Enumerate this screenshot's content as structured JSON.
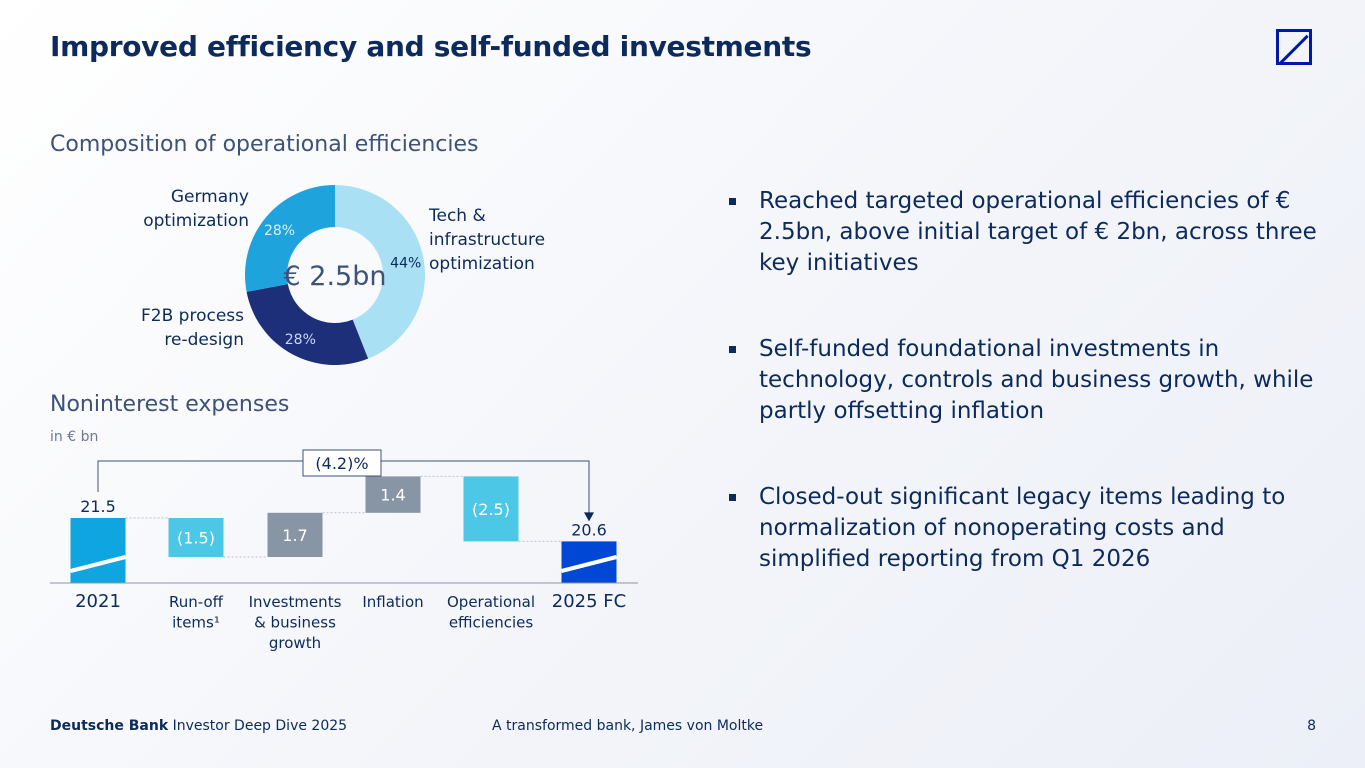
{
  "title": "Improved efficiency and self-funded investments",
  "logo": "deutsche-bank-logo",
  "donut": {
    "section_title": "Composition of operational efficiencies",
    "center_label": "€ 2.5bn",
    "colors": {
      "tech": "#a9e0f3",
      "f2b": "#1e2f7a",
      "germany": "#1fa3dd"
    }
  },
  "waterfall": {
    "section_title": "Noninterest expenses",
    "unit": "in € bn",
    "bracket_label": "(4.2)%",
    "colors": {
      "total": "#0ea5e0",
      "total2": "#0047d6",
      "negative": "#4cc7e6",
      "positive": "#8795a5"
    }
  },
  "chart_data": [
    {
      "type": "pie",
      "title": "Composition of operational efficiencies",
      "center_label": "€ 2.5bn",
      "categories": [
        "Tech & infrastructure optimization",
        "F2B process re-design",
        "Germany optimization"
      ],
      "label_lines": [
        [
          "Tech &",
          "infrastructure",
          "optimization"
        ],
        [
          "F2B process",
          "re-design"
        ],
        [
          "Germany",
          "optimization"
        ]
      ],
      "values": [
        44,
        28,
        28
      ],
      "value_labels": [
        "44%",
        "28%",
        "28%"
      ]
    },
    {
      "type": "bar",
      "subtype": "waterfall",
      "title": "Noninterest expenses",
      "ylabel": "in € bn",
      "categories": [
        "2021",
        "Run-off items1",
        "Investments & business growth",
        "Inflation",
        "Operational efficiencies",
        "2025 FC"
      ],
      "category_lines": [
        [
          "2021"
        ],
        [
          "Run-off",
          "items¹"
        ],
        [
          "Investments",
          "& business",
          "growth"
        ],
        [
          "Inflation"
        ],
        [
          "Operational",
          "efficiencies"
        ],
        [
          "2025 FC"
        ]
      ],
      "values": [
        21.5,
        -1.5,
        1.7,
        1.4,
        -2.5,
        20.6
      ],
      "value_labels": [
        "21.5",
        "(1.5)",
        "1.7",
        "1.4",
        "(2.5)",
        "20.6"
      ],
      "kinds": [
        "total",
        "negative",
        "positive",
        "positive",
        "negative",
        "total"
      ],
      "change_label": "(4.2)%"
    }
  ],
  "bullets": [
    "Reached targeted operational efficiencies of € 2.5bn, above initial target of € 2bn, across three key initiatives",
    "Self-funded foundational investments in technology, controls and business growth, while partly offsetting inflation",
    "Closed-out significant legacy items leading to normalization of nonoperating costs and simplified reporting from Q1 2026"
  ],
  "footer": {
    "brand": "Deutsche Bank",
    "event": "Investor Deep Dive 2025",
    "center": "A transformed bank, James von Moltke",
    "page": "8"
  }
}
